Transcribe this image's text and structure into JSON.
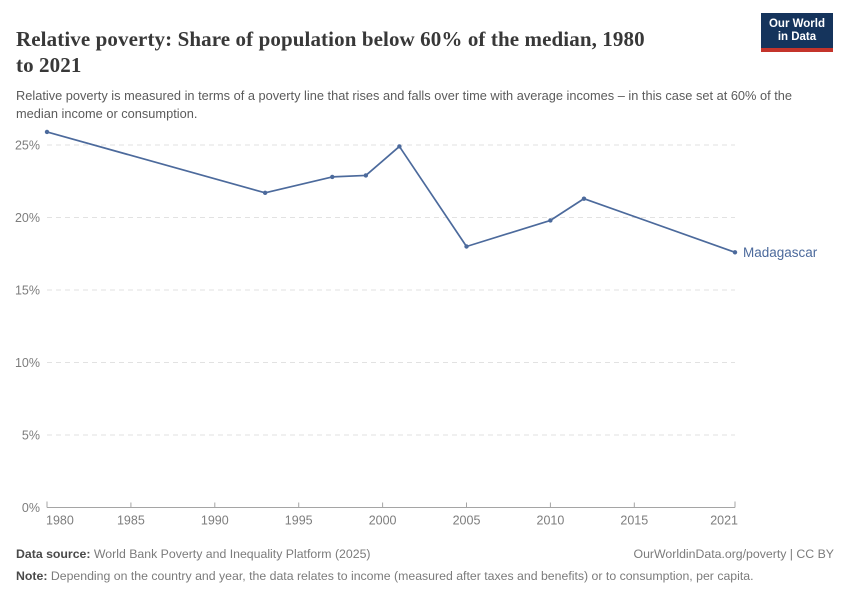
{
  "header": {
    "title_line1": "Relative poverty: Share of population below 60% of the median, 1980",
    "title_line2": "to 2021",
    "subtitle": "Relative poverty is measured in terms of a poverty line that rises and falls over time with average incomes – in this case set at 60% of the median income or consumption.",
    "logo": {
      "line1": "Our World",
      "line2": "in Data",
      "bg_color": "#15345c",
      "bar_color": "#c4342b"
    }
  },
  "chart_data": {
    "type": "line",
    "title": "Relative poverty: Share of population below 60% of the median, 1980 to 2021",
    "x": [
      1980,
      1993,
      1997,
      1999,
      2001,
      2005,
      2010,
      2012,
      2021
    ],
    "series": [
      {
        "name": "Madagascar",
        "color": "#4c6a9c",
        "values": [
          25.9,
          21.7,
          22.8,
          22.9,
          24.9,
          18.0,
          19.8,
          21.3,
          17.6
        ]
      }
    ],
    "x_ticks": [
      1980,
      1985,
      1990,
      1995,
      2000,
      2005,
      2010,
      2015,
      2021
    ],
    "y_ticks": [
      0,
      5,
      10,
      15,
      20,
      25
    ],
    "y_tick_suffix": "%",
    "xlim": [
      1980,
      2021
    ],
    "ylim": [
      0,
      27
    ],
    "grid": "horizontal-dashed",
    "legend": "entity-label-at-line-end",
    "colors": {
      "grid": "#e2e2e2",
      "axis": "#a5a5a5",
      "tick_label": "#7d7d7d"
    }
  },
  "footer": {
    "datasource_label": "Data source:",
    "datasource_value": "World Bank Poverty and Inequality Platform (2025)",
    "credit": "OurWorldinData.org/poverty | CC BY",
    "note_label": "Note:",
    "note_value": "Depending on the country and year, the data relates to income (measured after taxes and benefits) or to consumption, per capita."
  }
}
